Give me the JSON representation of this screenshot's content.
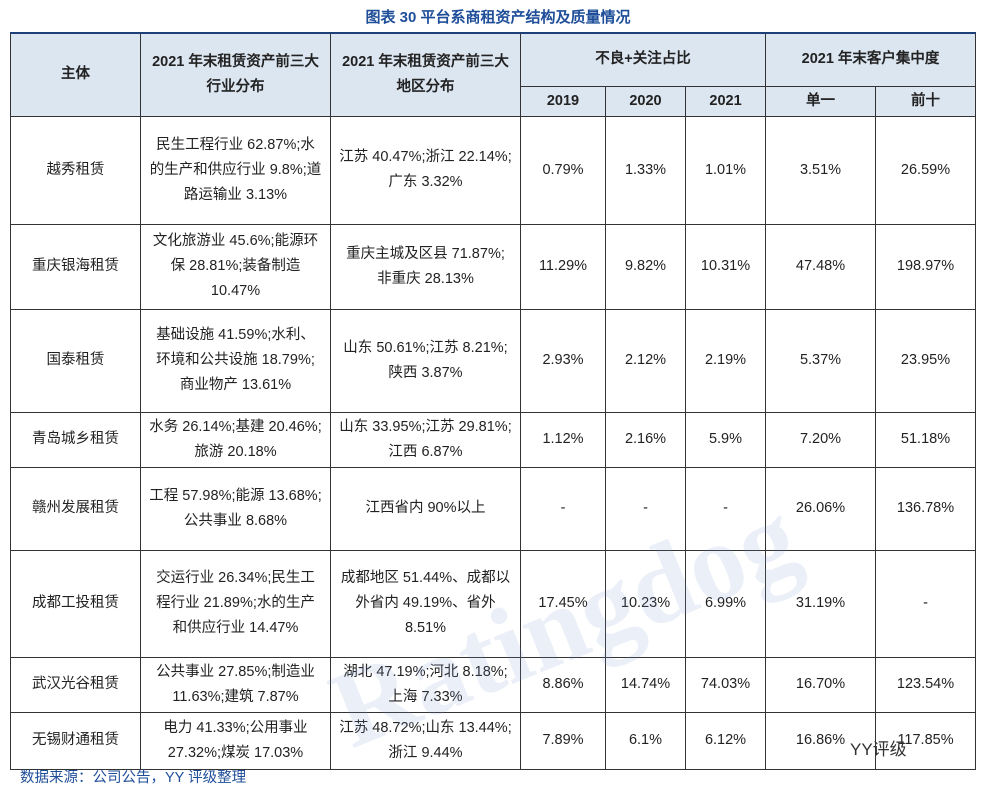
{
  "title": "图表 30 平台系商租资产结构及质量情况",
  "table": {
    "header_top": [
      "主体",
      "2021 年末租赁资产前三大行业分布",
      "2021 年末租赁资产前三大地区分布",
      "不良+关注占比",
      "2021 年末客户集中度"
    ],
    "header_sub": [
      "2019",
      "2020",
      "2021",
      "单一",
      "前十"
    ],
    "rows": [
      [
        "越秀租赁",
        "民生工程行业 62.87%;水的生产和供应行业 9.8%;道路运输业 3.13%",
        "江苏 40.47%;浙江 22.14%;广东 3.32%",
        "0.79%",
        "1.33%",
        "1.01%",
        "3.51%",
        "26.59%"
      ],
      [
        "重庆银海租赁",
        "文化旅游业 45.6%;能源环保 28.81%;装备制造 10.47%",
        "重庆主城及区县 71.87%;非重庆 28.13%",
        "11.29%",
        "9.82%",
        "10.31%",
        "47.48%",
        "198.97%"
      ],
      [
        "国泰租赁",
        "基础设施 41.59%;水利、环境和公共设施 18.79%;商业物产 13.61%",
        "山东 50.61%;江苏 8.21%;陕西 3.87%",
        "2.93%",
        "2.12%",
        "2.19%",
        "5.37%",
        "23.95%"
      ],
      [
        "青岛城乡租赁",
        "水务 26.14%;基建 20.46%;旅游 20.18%",
        "山东 33.95%;江苏 29.81%;江西 6.87%",
        "1.12%",
        "2.16%",
        "5.9%",
        "7.20%",
        "51.18%"
      ],
      [
        "赣州发展租赁",
        "工程 57.98%;能源 13.68%;公共事业 8.68%",
        "江西省内 90%以上",
        "-",
        "-",
        "-",
        "26.06%",
        "136.78%"
      ],
      [
        "成都工投租赁",
        "交运行业 26.34%;民生工程行业 21.89%;水的生产和供应行业 14.47%",
        "成都地区 51.44%、成都以外省内 49.19%、省外 8.51%",
        "17.45%",
        "10.23%",
        "6.99%",
        "31.19%",
        "-"
      ],
      [
        "武汉光谷租赁",
        "公共事业 27.85%;制造业 11.63%;建筑 7.87%",
        "湖北 47.19%;河北 8.18%;上海 7.33%",
        "8.86%",
        "14.74%",
        "74.03%",
        "16.70%",
        "123.54%"
      ],
      [
        "无锡财通租赁",
        "电力 41.33%;公用事业 27.32%;煤炭 17.03%",
        "江苏 48.72%;山东 13.44%;浙江 9.44%",
        "7.89%",
        "6.1%",
        "6.12%",
        "16.86%",
        "117.85%"
      ]
    ]
  },
  "source": "数据来源：公司公告，YY 评级整理",
  "watermark": "Ratingdog",
  "badge": "YY评级"
}
